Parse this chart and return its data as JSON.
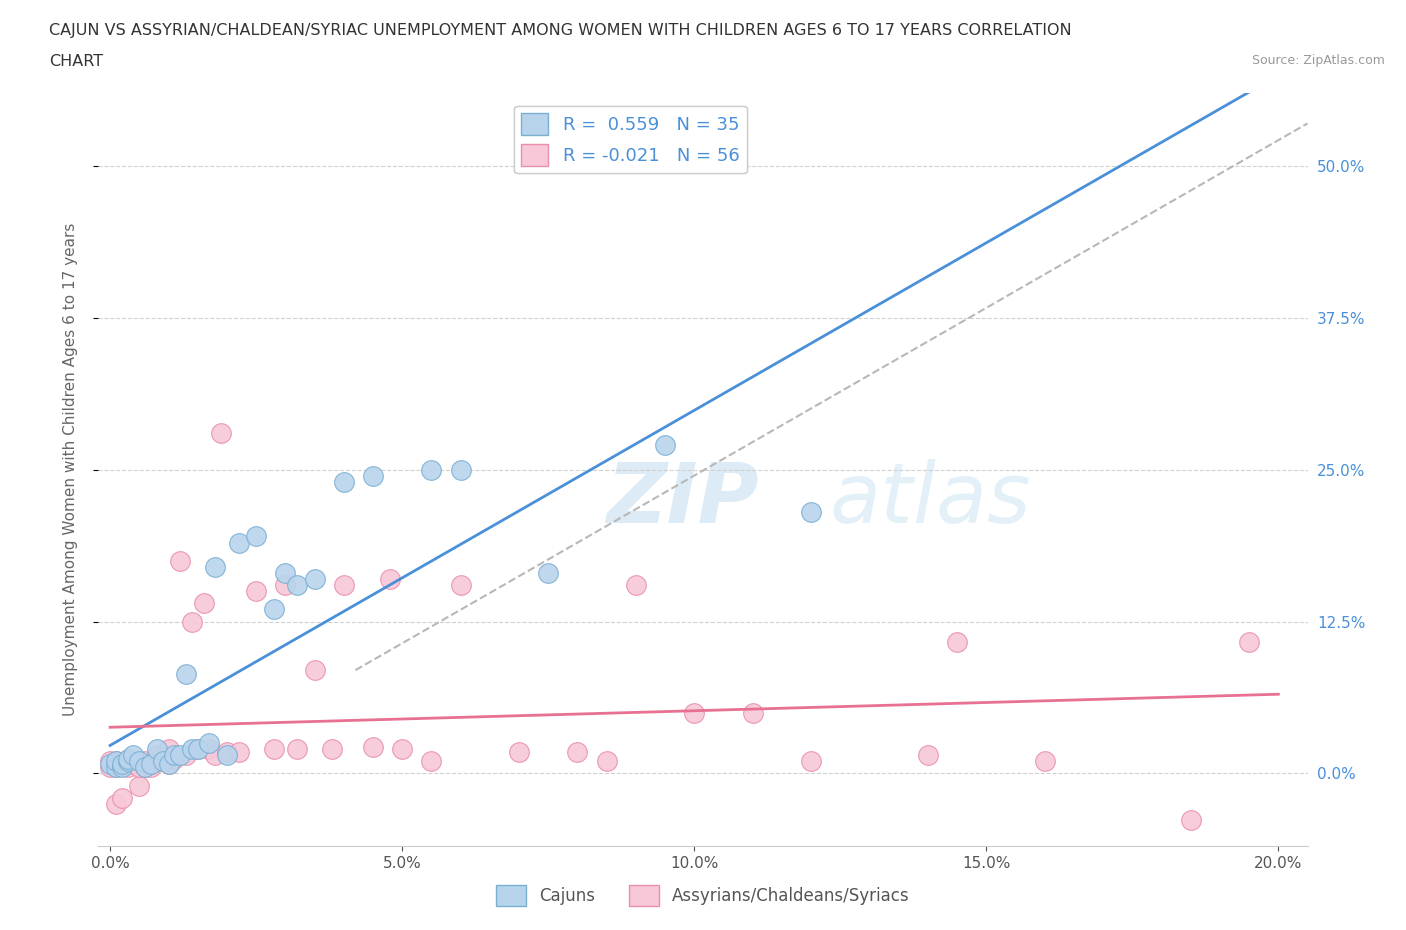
{
  "title_line1": "CAJUN VS ASSYRIAN/CHALDEAN/SYRIAC UNEMPLOYMENT AMONG WOMEN WITH CHILDREN AGES 6 TO 17 YEARS CORRELATION",
  "title_line2": "CHART",
  "source_text": "Source: ZipAtlas.com",
  "ylabel": "Unemployment Among Women with Children Ages 6 to 17 years",
  "watermark_zip": "ZIP",
  "watermark_atlas": "atlas",
  "cajun_R": 0.559,
  "cajun_N": 35,
  "assyrian_R": -0.021,
  "assyrian_N": 56,
  "xlim": [
    -0.002,
    0.205
  ],
  "ylim": [
    -0.06,
    0.56
  ],
  "xticks": [
    0.0,
    0.05,
    0.1,
    0.15,
    0.2
  ],
  "xtick_labels": [
    "0.0%",
    "5.0%",
    "10.0%",
    "15.0%",
    "20.0%"
  ],
  "yticks": [
    0.0,
    0.125,
    0.25,
    0.375,
    0.5
  ],
  "ytick_labels": [
    "0.0%",
    "12.5%",
    "25.0%",
    "37.5%",
    "50.0%"
  ],
  "cajun_color": "#b8d4ec",
  "cajun_edge": "#7aafd4",
  "assyrian_color": "#f8c8d8",
  "assyrian_edge": "#e890aa",
  "trend_cajun_color": "#4a90d9",
  "trend_assyrian_color": "#e87090",
  "trend_dashed_color": "#b8b8b8",
  "legend_cajun_fill": "#b8d4ec",
  "legend_assyrian_fill": "#f8c8d8",
  "cajun_x": [
    0.0,
    0.001,
    0.001,
    0.002,
    0.002,
    0.003,
    0.003,
    0.004,
    0.005,
    0.006,
    0.007,
    0.008,
    0.009,
    0.01,
    0.011,
    0.012,
    0.013,
    0.014,
    0.015,
    0.017,
    0.018,
    0.02,
    0.022,
    0.025,
    0.028,
    0.03,
    0.032,
    0.035,
    0.04,
    0.045,
    0.055,
    0.06,
    0.075,
    0.095,
    0.12
  ],
  "cajun_y": [
    0.008,
    0.005,
    0.01,
    0.005,
    0.008,
    0.01,
    0.012,
    0.015,
    0.01,
    0.005,
    0.008,
    0.02,
    0.01,
    0.008,
    0.015,
    0.015,
    0.082,
    0.02,
    0.02,
    0.025,
    0.17,
    0.015,
    0.19,
    0.195,
    0.135,
    0.165,
    0.155,
    0.16,
    0.24,
    0.245,
    0.25,
    0.25,
    0.165,
    0.27,
    0.215
  ],
  "assyrian_x": [
    0.0,
    0.0,
    0.001,
    0.001,
    0.001,
    0.002,
    0.002,
    0.003,
    0.003,
    0.004,
    0.005,
    0.005,
    0.006,
    0.006,
    0.007,
    0.007,
    0.008,
    0.008,
    0.009,
    0.01,
    0.01,
    0.011,
    0.012,
    0.013,
    0.014,
    0.015,
    0.016,
    0.017,
    0.018,
    0.019,
    0.02,
    0.022,
    0.025,
    0.028,
    0.03,
    0.032,
    0.035,
    0.038,
    0.04,
    0.045,
    0.048,
    0.05,
    0.055,
    0.06,
    0.07,
    0.08,
    0.085,
    0.09,
    0.1,
    0.11,
    0.12,
    0.14,
    0.145,
    0.16,
    0.185,
    0.195
  ],
  "assyrian_y": [
    0.005,
    0.01,
    -0.025,
    0.005,
    0.01,
    -0.02,
    0.008,
    0.005,
    0.01,
    0.008,
    -0.01,
    0.005,
    0.005,
    0.01,
    0.005,
    0.008,
    0.01,
    0.015,
    0.015,
    0.008,
    0.02,
    0.012,
    0.175,
    0.015,
    0.125,
    0.02,
    0.14,
    0.02,
    0.015,
    0.28,
    0.018,
    0.018,
    0.15,
    0.02,
    0.155,
    0.02,
    0.085,
    0.02,
    0.155,
    0.022,
    0.16,
    0.02,
    0.01,
    0.155,
    0.018,
    0.018,
    0.01,
    0.155,
    0.05,
    0.05,
    0.01,
    0.015,
    0.108,
    0.01,
    -0.038,
    0.108
  ]
}
